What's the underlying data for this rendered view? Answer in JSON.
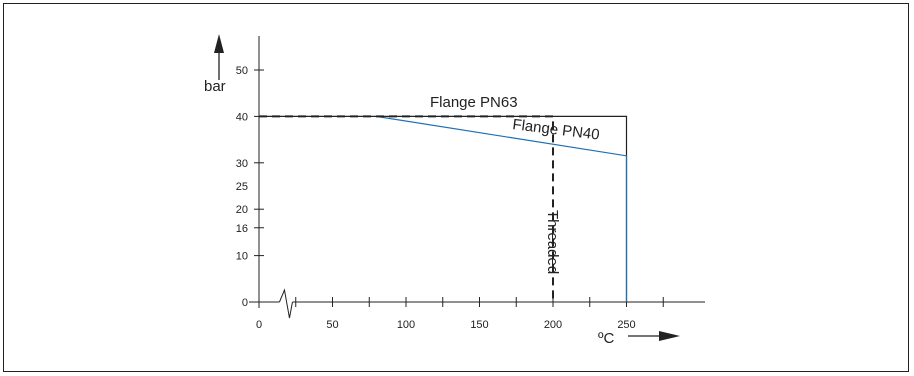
{
  "chart_data": {
    "type": "line",
    "title": "",
    "xlabel": "ºC",
    "ylabel": "bar",
    "xlim": [
      0,
      290
    ],
    "ylim": [
      0,
      58
    ],
    "x_ticks": [
      0,
      50,
      100,
      150,
      200,
      250
    ],
    "x_minor_ticks": [
      25,
      75,
      125,
      175,
      225,
      275
    ],
    "y_ticks": [
      0,
      10,
      16,
      20,
      25,
      30,
      40,
      50
    ],
    "y_tick_marks": [
      0,
      10,
      16,
      20,
      30,
      40,
      50
    ],
    "axis_break_x": 18,
    "grid": false,
    "legend": "none",
    "series": [
      {
        "name": "Flange PN63",
        "style": "solid",
        "color": "#222222",
        "x": [
          0,
          250,
          250
        ],
        "y": [
          40,
          40,
          0
        ]
      },
      {
        "name": "Flange PN40",
        "style": "solid",
        "color": "#1f6fb2",
        "x": [
          80,
          250,
          250
        ],
        "y": [
          40,
          31.5,
          0
        ]
      },
      {
        "name": "Threaded",
        "style": "dashed",
        "color": "#222222",
        "x": [
          0,
          200,
          200
        ],
        "y": [
          40,
          40,
          0
        ]
      }
    ]
  },
  "colors": {
    "pn40": "#1f6fb2",
    "ink": "#222222"
  }
}
